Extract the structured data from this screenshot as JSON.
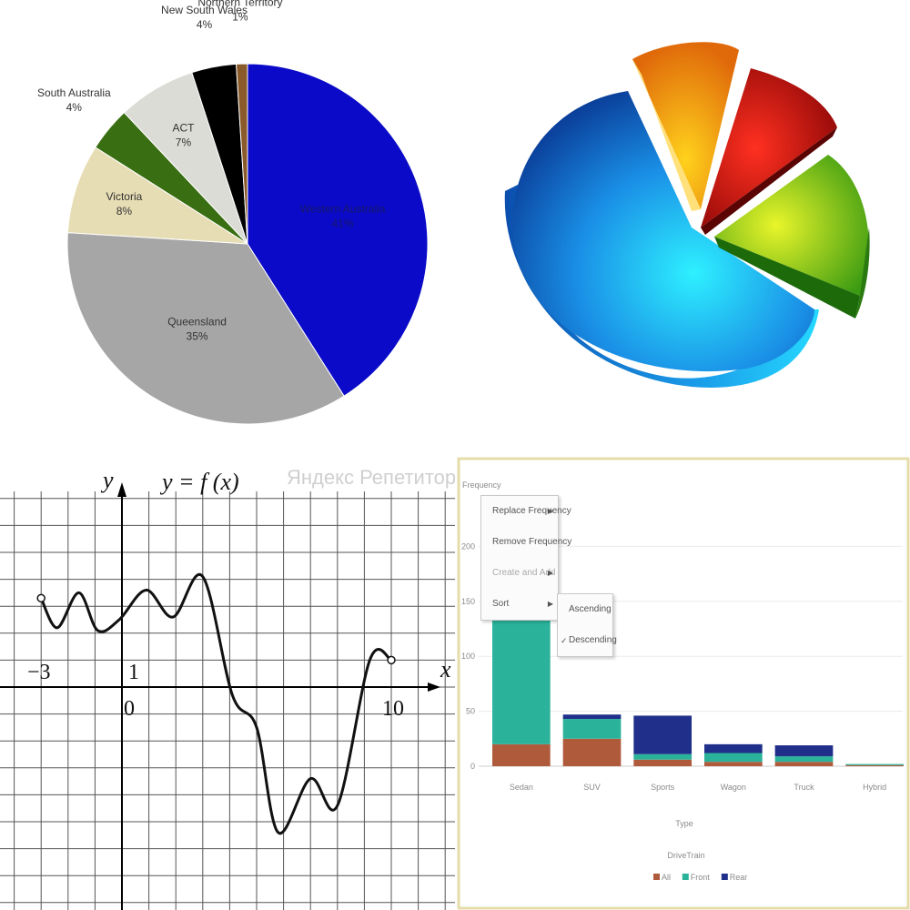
{
  "charts": {
    "pie_regions": {
      "type": "pie",
      "slices": [
        {
          "label": "Western Australia",
          "pct_label": "41%",
          "value": 41,
          "color": "#0a0ac8"
        },
        {
          "label": "Queensland",
          "pct_label": "35%",
          "value": 35,
          "color": "#a6a6a6"
        },
        {
          "label": "Victoria",
          "pct_label": "8%",
          "value": 8,
          "color": "#e6ddb4"
        },
        {
          "label": "South Australia",
          "pct_label": "4%",
          "value": 4,
          "color": "#3a6e12"
        },
        {
          "label": "ACT",
          "pct_label": "7%",
          "value": 7,
          "color": "#dcdcd6"
        },
        {
          "label": "New South Wales",
          "pct_label": "4%",
          "value": 4,
          "color": "#000000"
        },
        {
          "label": "Northern Territory",
          "pct_label": "1%",
          "value": 1,
          "color": "#8b5a2b"
        }
      ]
    },
    "pie_3d": {
      "type": "pie",
      "colors": {
        "main": "#1f8fe0",
        "orange": "#f39a14",
        "red": "#c81010",
        "green": "#7cc41c"
      }
    },
    "function_graph": {
      "type": "line",
      "title": "y = f (x)",
      "xlabel": "x",
      "ylabel": "y",
      "tick_labels": [
        "−3",
        "0",
        "1",
        "10"
      ],
      "x_range": [
        -3,
        10
      ],
      "points": [
        {
          "x": -3.0,
          "y": 3.3
        },
        {
          "x": -2.4,
          "y": 2.2
        },
        {
          "x": -1.6,
          "y": 3.5
        },
        {
          "x": -0.9,
          "y": 2.1
        },
        {
          "x": -0.1,
          "y": 2.5
        },
        {
          "x": 0.9,
          "y": 3.6
        },
        {
          "x": 1.9,
          "y": 2.6
        },
        {
          "x": 3.0,
          "y": 4.1
        },
        {
          "x": 4.1,
          "y": -0.3
        },
        {
          "x": 5.0,
          "y": -1.5
        },
        {
          "x": 5.8,
          "y": -5.4
        },
        {
          "x": 7.0,
          "y": -3.4
        },
        {
          "x": 8.0,
          "y": -4.4
        },
        {
          "x": 9.2,
          "y": 1.0
        },
        {
          "x": 10.0,
          "y": 1.0
        }
      ],
      "watermark": "Яндекс Репетитор"
    },
    "bar_drivetrain": {
      "type": "bar",
      "ylabel": "Frequency",
      "xlabel": "Type",
      "y_ticks": [
        "200",
        "150",
        "100",
        "50",
        "0"
      ],
      "y_max": 250,
      "categories": [
        "Sedan",
        "SUV",
        "Sports",
        "Wagon",
        "Truck",
        "Hybrid"
      ],
      "series": [
        {
          "name": "All",
          "color": "#b05a3c",
          "values": [
            20,
            25,
            6,
            4,
            4,
            1
          ]
        },
        {
          "name": "Front",
          "color": "#2ab39a",
          "values": [
            140,
            18,
            5,
            8,
            5,
            1
          ]
        },
        {
          "name": "Rear",
          "color": "#1f2f8a",
          "values": [
            5,
            4,
            35,
            8,
            10,
            0
          ]
        }
      ],
      "legend_title": "DriveTrain",
      "context_menu": {
        "items": [
          "Replace Frequency",
          "Remove Frequency",
          "Create and Add",
          "Sort"
        ],
        "submenu": [
          "Ascending",
          "Descending"
        ],
        "checked": "Descending"
      }
    }
  }
}
